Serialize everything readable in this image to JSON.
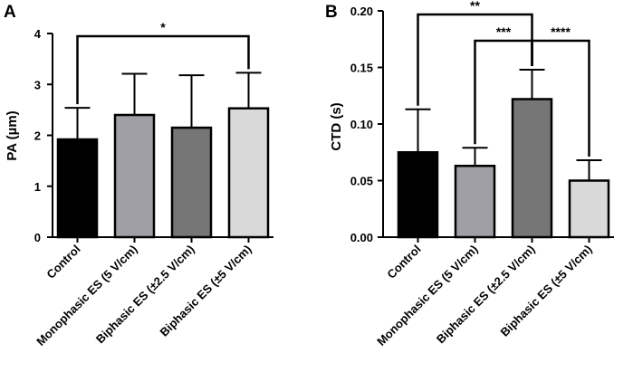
{
  "chart_data": [
    {
      "panel": "A",
      "type": "bar",
      "title": "",
      "ylabel": "PA (µm)",
      "xlabel": "",
      "ylim": [
        0,
        4
      ],
      "yticks": [
        "0",
        "1",
        "2",
        "3",
        "4"
      ],
      "categories": [
        "Control",
        "Monophasic ES (5 V/cm)",
        "Biphasic ES (±2.5 V/cm)",
        "Biphasic ES (±5 V/cm)"
      ],
      "values": [
        1.92,
        2.4,
        2.15,
        2.53
      ],
      "errors": [
        0.62,
        0.81,
        1.03,
        0.7
      ],
      "colors": [
        "#000000",
        "#a09fa5",
        "#767676",
        "#d9d9d9"
      ],
      "significance": [
        {
          "from": 0,
          "to": 3,
          "label": "*"
        }
      ]
    },
    {
      "panel": "B",
      "type": "bar",
      "title": "",
      "ylabel": "CTD (s)",
      "xlabel": "",
      "ylim": [
        0,
        0.2
      ],
      "yticks": [
        "0.00",
        "0.05",
        "0.10",
        "0.15",
        "0.20"
      ],
      "categories": [
        "Control",
        "Monophasic ES (5 V/cm)",
        "Biphasic ES (±2.5 V/cm)",
        "Biphasic ES (±5 V/cm)"
      ],
      "values": [
        0.075,
        0.063,
        0.122,
        0.05
      ],
      "errors": [
        0.038,
        0.016,
        0.026,
        0.018
      ],
      "colors": [
        "#000000",
        "#a09fa5",
        "#767676",
        "#d9d9d9"
      ],
      "significance": [
        {
          "from": 0,
          "to": 2,
          "label": "**"
        },
        {
          "from": 1,
          "to": 2,
          "label": "***"
        },
        {
          "from": 2,
          "to": 3,
          "label": "****"
        }
      ]
    }
  ]
}
